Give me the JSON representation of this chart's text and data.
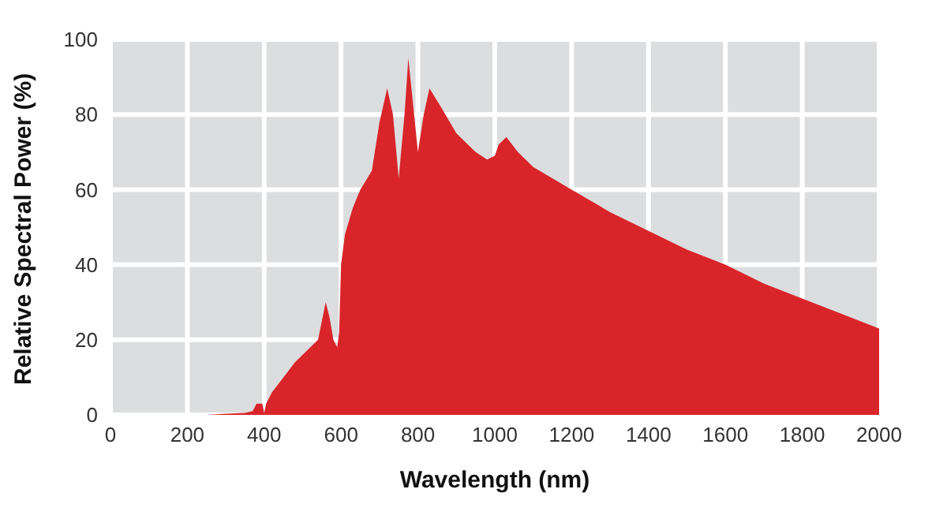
{
  "chart_data": {
    "type": "area",
    "xlabel": "Wavelength (nm)",
    "ylabel": "Relative Spectral Power (%)",
    "x": [
      250,
      300,
      350,
      370,
      380,
      395,
      400,
      405,
      420,
      450,
      480,
      500,
      520,
      540,
      550,
      560,
      570,
      580,
      590,
      595,
      600,
      610,
      630,
      650,
      680,
      700,
      720,
      735,
      750,
      765,
      775,
      790,
      800,
      815,
      830,
      860,
      900,
      950,
      980,
      1000,
      1010,
      1030,
      1060,
      1100,
      1200,
      1300,
      1400,
      1500,
      1600,
      1700,
      1800,
      1900,
      2000
    ],
    "series": [
      {
        "color": "#d9252a",
        "values": [
          0,
          0.3,
          0.5,
          1,
          3,
          3,
          0.5,
          3,
          6,
          10,
          14,
          16,
          18,
          20,
          25,
          30,
          26,
          20,
          18,
          22,
          40,
          48,
          55,
          60,
          65,
          78,
          87,
          80,
          63,
          80,
          95,
          80,
          70,
          80,
          87,
          82,
          75,
          70,
          68,
          69,
          72,
          74,
          70,
          66,
          60,
          54,
          49,
          44,
          40,
          35,
          31,
          27,
          23
        ]
      }
    ],
    "xlim": [
      0,
      2000
    ],
    "xticks": [
      0,
      200,
      400,
      600,
      800,
      1000,
      1200,
      1400,
      1600,
      1800,
      2000
    ],
    "ylim": [
      0,
      100
    ],
    "yticks": [
      0,
      20,
      40,
      60,
      80,
      100
    ],
    "grid": true
  }
}
